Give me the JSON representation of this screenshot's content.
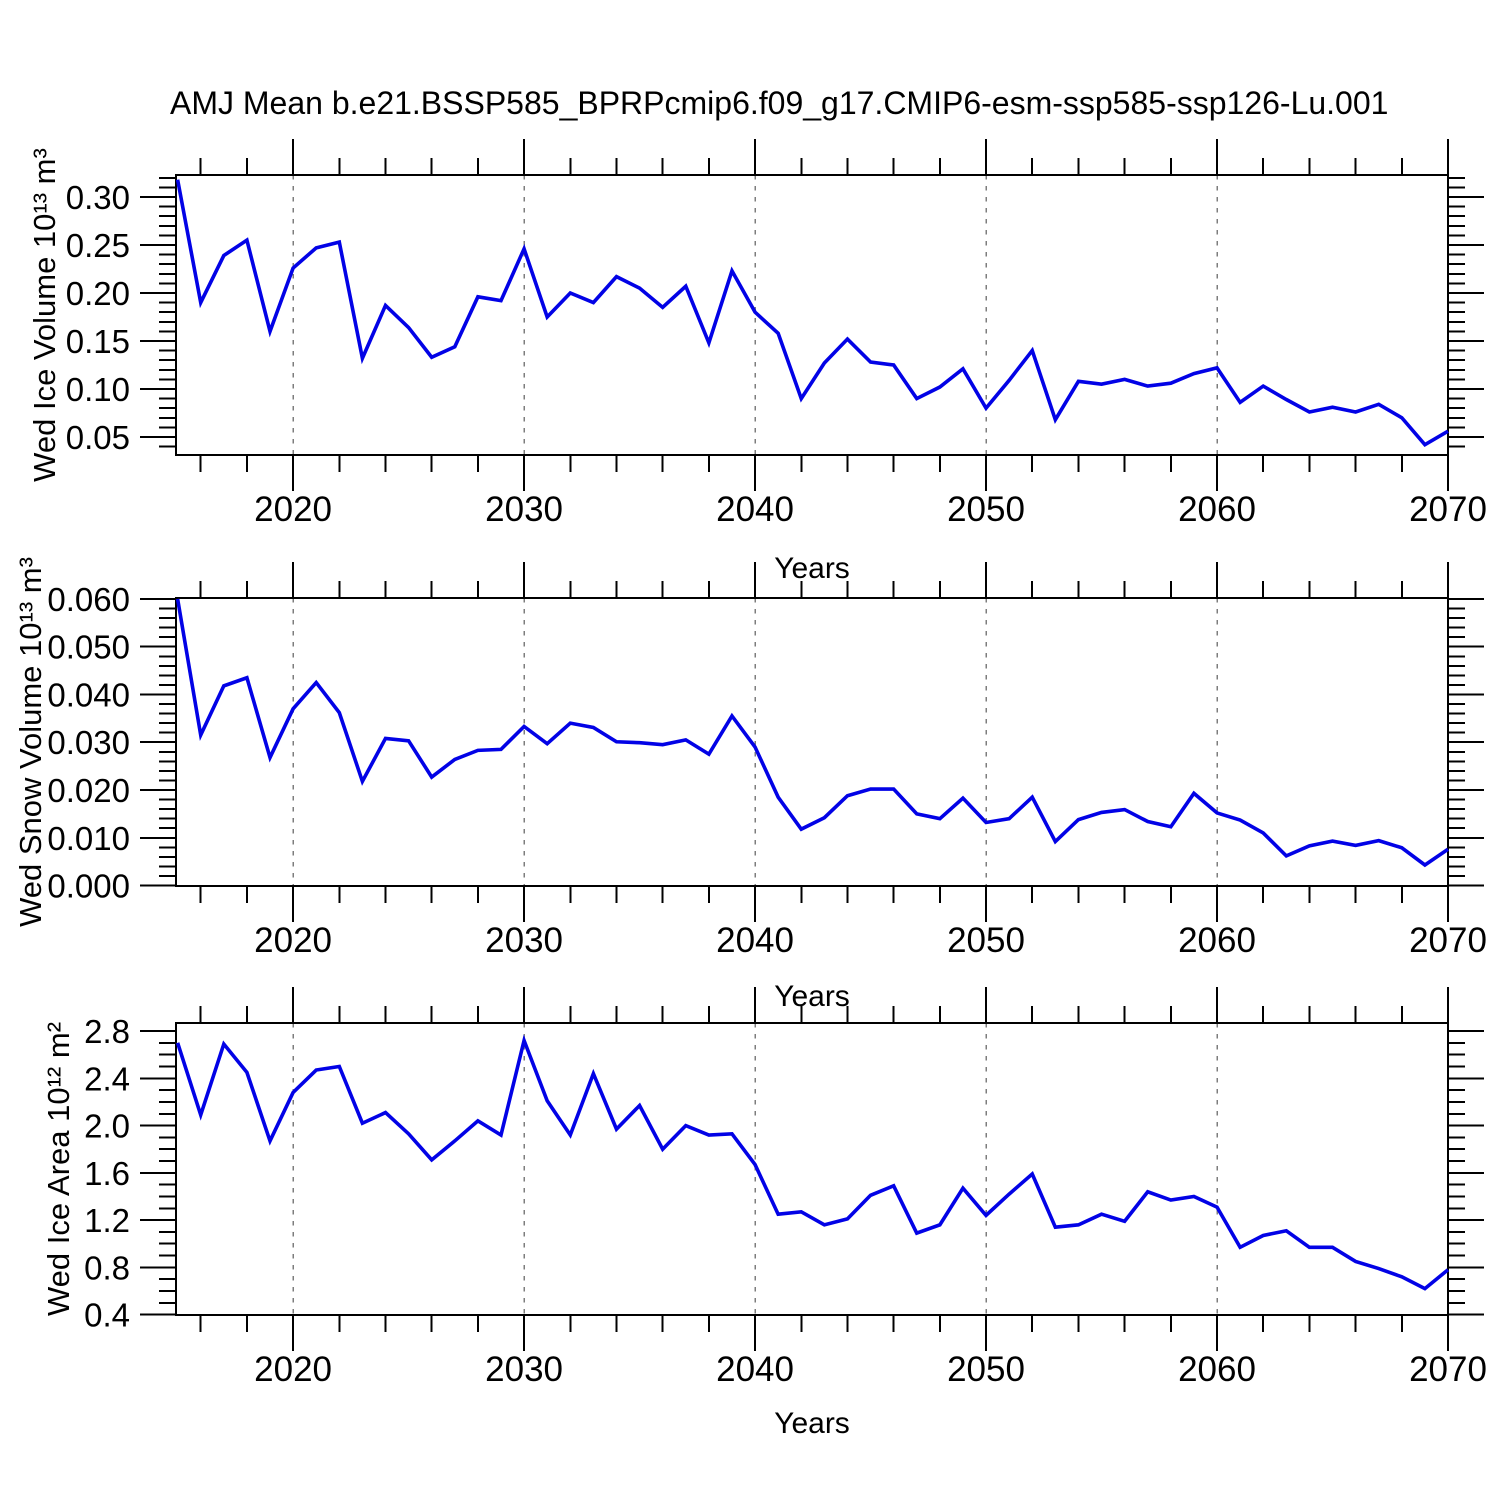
{
  "title": "AMJ Mean b.e21.BSSP585_BPRPcmip6.f09_g17.CMIP6-esm-ssp585-ssp126-Lu.001",
  "style": {
    "background": "#ffffff",
    "axis_color": "#000000",
    "grid_color": "#7d7d7d",
    "line_color": "#0202e6"
  },
  "chart_data": [
    {
      "type": "line",
      "title": "AMJ Mean b.e21.BSSP585_BPRPcmip6.f09_g17.CMIP6-esm-ssp585-ssp126-Lu.001",
      "ylabel": "Wed Ice Volume 10¹³ m³",
      "xlabel": "Years",
      "legend_position": "none",
      "grid": "vertical-dashed",
      "line_color": "#0202e6",
      "x": [
        2015,
        2016,
        2017,
        2018,
        2019,
        2020,
        2021,
        2022,
        2023,
        2024,
        2025,
        2026,
        2027,
        2028,
        2029,
        2030,
        2031,
        2032,
        2033,
        2034,
        2035,
        2036,
        2037,
        2038,
        2039,
        2040,
        2041,
        2042,
        2043,
        2044,
        2045,
        2046,
        2047,
        2048,
        2049,
        2050,
        2051,
        2052,
        2053,
        2054,
        2055,
        2056,
        2057,
        2058,
        2059,
        2060,
        2061,
        2062,
        2063,
        2064,
        2065,
        2066,
        2067,
        2068,
        2069,
        2070
      ],
      "values": [
        0.318,
        0.19,
        0.239,
        0.255,
        0.16,
        0.226,
        0.247,
        0.253,
        0.132,
        0.187,
        0.164,
        0.133,
        0.144,
        0.196,
        0.192,
        0.246,
        0.175,
        0.2,
        0.19,
        0.217,
        0.205,
        0.185,
        0.207,
        0.148,
        0.223,
        0.18,
        0.158,
        0.09,
        0.127,
        0.152,
        0.128,
        0.125,
        0.09,
        0.102,
        0.121,
        0.08,
        0.109,
        0.14,
        0.068,
        0.108,
        0.105,
        0.11,
        0.103,
        0.106,
        0.116,
        0.122,
        0.086,
        0.103,
        0.089,
        0.076,
        0.081,
        0.076,
        0.084,
        0.07,
        0.042,
        0.056
      ],
      "xlim": [
        2014.93,
        2070
      ],
      "ylim": [
        0.0312,
        0.3229
      ],
      "xticks": [
        2020,
        2030,
        2040,
        2050,
        2060,
        2070
      ],
      "xtick_labels": [
        "2020",
        "2030",
        "2040",
        "2050",
        "2060",
        "2070"
      ],
      "xtick_minor_step": 2,
      "yticks": [
        0.05,
        0.1,
        0.15,
        0.2,
        0.25,
        0.3
      ],
      "ytick_labels": [
        "0.05",
        "0.10",
        "0.15",
        "0.20",
        "0.25",
        "0.30"
      ],
      "ytick_minor_step": 0.01,
      "grid_x": [
        2020,
        2030,
        2040,
        2050,
        2060
      ]
    },
    {
      "type": "line",
      "title": "",
      "ylabel": "Wed Snow Volume 10¹³ m³",
      "xlabel": "Years",
      "legend_position": "none",
      "grid": "vertical-dashed",
      "line_color": "#0202e6",
      "x": [
        2015,
        2016,
        2017,
        2018,
        2019,
        2020,
        2021,
        2022,
        2023,
        2024,
        2025,
        2026,
        2027,
        2028,
        2029,
        2030,
        2031,
        2032,
        2033,
        2034,
        2035,
        2036,
        2037,
        2038,
        2039,
        2040,
        2041,
        2042,
        2043,
        2044,
        2045,
        2046,
        2047,
        2048,
        2049,
        2050,
        2051,
        2052,
        2053,
        2054,
        2055,
        2056,
        2057,
        2058,
        2059,
        2060,
        2061,
        2062,
        2063,
        2064,
        2065,
        2066,
        2067,
        2068,
        2069,
        2070
      ],
      "values": [
        0.06,
        0.0315,
        0.0418,
        0.0435,
        0.0268,
        0.037,
        0.0425,
        0.0362,
        0.0218,
        0.0308,
        0.0303,
        0.0227,
        0.0264,
        0.0283,
        0.0285,
        0.0333,
        0.0297,
        0.034,
        0.0331,
        0.0301,
        0.0299,
        0.0295,
        0.0305,
        0.0275,
        0.0355,
        0.029,
        0.0185,
        0.0118,
        0.0142,
        0.0188,
        0.0202,
        0.0202,
        0.015,
        0.014,
        0.0183,
        0.0132,
        0.014,
        0.0185,
        0.0092,
        0.0138,
        0.0153,
        0.0159,
        0.0134,
        0.0123,
        0.0193,
        0.0152,
        0.0137,
        0.011,
        0.0062,
        0.0083,
        0.0093,
        0.0084,
        0.0094,
        0.0079,
        0.0043,
        0.0076
      ],
      "xlim": [
        2014.93,
        2070
      ],
      "ylim": [
        -0.0001,
        0.0602
      ],
      "xticks": [
        2020,
        2030,
        2040,
        2050,
        2060,
        2070
      ],
      "xtick_labels": [
        "2020",
        "2030",
        "2040",
        "2050",
        "2060",
        "2070"
      ],
      "xtick_minor_step": 2,
      "yticks": [
        0.0,
        0.01,
        0.02,
        0.03,
        0.04,
        0.05,
        0.06
      ],
      "ytick_labels": [
        "0.000",
        "0.010",
        "0.020",
        "0.030",
        "0.040",
        "0.050",
        "0.060"
      ],
      "ytick_minor_step": 0.002,
      "grid_x": [
        2020,
        2030,
        2040,
        2050,
        2060
      ]
    },
    {
      "type": "line",
      "title": "",
      "ylabel": "Wed Ice Area 10¹² m²",
      "xlabel": "Years",
      "legend_position": "none",
      "grid": "vertical-dashed",
      "line_color": "#0202e6",
      "x": [
        2015,
        2016,
        2017,
        2018,
        2019,
        2020,
        2021,
        2022,
        2023,
        2024,
        2025,
        2026,
        2027,
        2028,
        2029,
        2030,
        2031,
        2032,
        2033,
        2034,
        2035,
        2036,
        2037,
        2038,
        2039,
        2040,
        2041,
        2042,
        2043,
        2044,
        2045,
        2046,
        2047,
        2048,
        2049,
        2050,
        2051,
        2052,
        2053,
        2054,
        2055,
        2056,
        2057,
        2058,
        2059,
        2060,
        2061,
        2062,
        2063,
        2064,
        2065,
        2066,
        2067,
        2068,
        2069,
        2070
      ],
      "values": [
        2.7,
        2.09,
        2.69,
        2.45,
        1.87,
        2.28,
        2.47,
        2.5,
        2.02,
        2.11,
        1.93,
        1.71,
        1.87,
        2.04,
        1.92,
        2.72,
        2.21,
        1.92,
        2.44,
        1.97,
        2.17,
        1.8,
        2.0,
        1.92,
        1.93,
        1.67,
        1.25,
        1.27,
        1.16,
        1.21,
        1.41,
        1.49,
        1.09,
        1.16,
        1.47,
        1.24,
        1.42,
        1.59,
        1.14,
        1.16,
        1.25,
        1.19,
        1.44,
        1.37,
        1.4,
        1.31,
        0.97,
        1.07,
        1.11,
        0.97,
        0.97,
        0.85,
        0.79,
        0.72,
        0.62,
        0.78
      ],
      "xlim": [
        2014.93,
        2070
      ],
      "ylim": [
        0.397,
        2.868
      ],
      "xticks": [
        2020,
        2030,
        2040,
        2050,
        2060,
        2070
      ],
      "xtick_labels": [
        "2020",
        "2030",
        "2040",
        "2050",
        "2060",
        "2070"
      ],
      "xtick_minor_step": 2,
      "yticks": [
        0.4,
        0.8,
        1.2,
        1.6,
        2.0,
        2.4,
        2.8
      ],
      "ytick_labels": [
        "0.4",
        "0.8",
        "1.2",
        "1.6",
        "2.0",
        "2.4",
        "2.8"
      ],
      "ytick_minor_step": 0.1,
      "grid_x": [
        2020,
        2030,
        2040,
        2050,
        2060
      ]
    }
  ]
}
